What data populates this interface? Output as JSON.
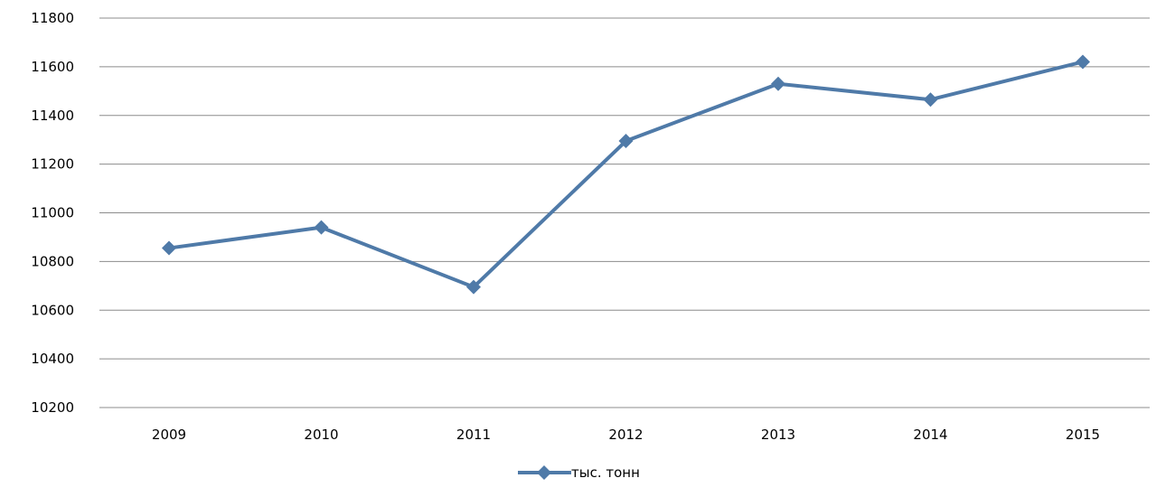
{
  "chart_data": {
    "type": "line",
    "title": "",
    "xlabel": "",
    "ylabel": "",
    "categories": [
      "2009",
      "2010",
      "2011",
      "2012",
      "2013",
      "2014",
      "2015"
    ],
    "series": [
      {
        "name": "тыс. тонн",
        "color": "#4f7aa8",
        "marker": "diamond",
        "values": [
          10855,
          10940,
          10695,
          11295,
          11530,
          11465,
          11620
        ]
      }
    ],
    "ylim": [
      10200,
      11800
    ],
    "yticks": [
      "10200",
      "10400",
      "10600",
      "10800",
      "11000",
      "11200",
      "11400",
      "11600",
      "11800"
    ],
    "grid": true,
    "legend_position": "bottom"
  }
}
